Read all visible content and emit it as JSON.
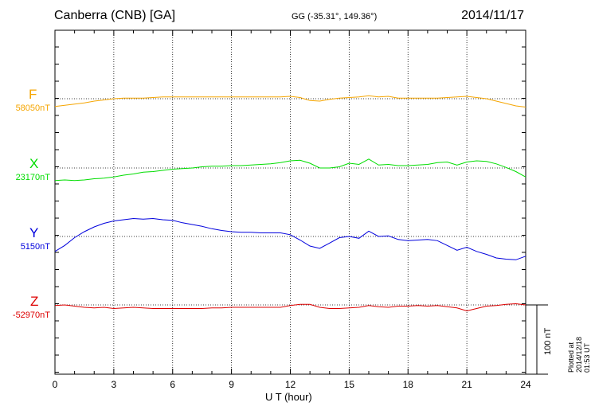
{
  "header": {
    "station": "Canberra (CNB)  [GA]",
    "coords": "GG (-35.31°, 149.36°)",
    "date": "2014/11/17"
  },
  "footer": {
    "plotted": "Plotted at 2014/12/18 01:53 UT",
    "scale_label": "100 nT"
  },
  "chart_data": {
    "type": "line",
    "title": "Canberra (CNB)  [GA]",
    "xlabel": "U T (hour)",
    "ylabel": "",
    "xlim": [
      0,
      24
    ],
    "xticks": [
      "0",
      "3",
      "6",
      "9",
      "12",
      "15",
      "18",
      "21",
      "24"
    ],
    "grid": true,
    "scale_bar_nT": 100,
    "series": [
      {
        "name": "F",
        "baseline": "58050nT",
        "color": "#f5a500",
        "x": [
          0,
          0.5,
          1,
          1.5,
          2,
          2.5,
          3,
          3.5,
          4,
          4.5,
          5,
          5.5,
          6,
          6.5,
          7,
          7.5,
          8,
          8.5,
          9,
          9.5,
          10,
          10.5,
          11,
          11.5,
          12,
          12.5,
          13,
          13.5,
          14,
          14.5,
          15,
          15.5,
          16,
          16.5,
          17,
          17.5,
          18,
          18.5,
          19,
          19.5,
          20,
          20.5,
          21,
          21.5,
          22,
          22.5,
          23,
          23.5,
          24
        ],
        "y": [
          -13,
          -11,
          -9,
          -7,
          -4,
          -2,
          0,
          1,
          1,
          1,
          2,
          3,
          3,
          3,
          3,
          3,
          3,
          3,
          3,
          3,
          3,
          3,
          3,
          3,
          4,
          2,
          -3,
          -4,
          -1,
          1,
          2,
          3,
          5,
          3,
          4,
          1,
          1,
          1,
          1,
          1,
          2,
          3,
          4,
          2,
          0,
          -4,
          -8,
          -12,
          -14
        ]
      },
      {
        "name": "X",
        "baseline": "23170nT",
        "color": "#00dd00",
        "x": [
          0,
          0.5,
          1,
          1.5,
          2,
          2.5,
          3,
          3.5,
          4,
          4.5,
          5,
          5.5,
          6,
          6.5,
          7,
          7.5,
          8,
          8.5,
          9,
          9.5,
          10,
          10.5,
          11,
          11.5,
          12,
          12.5,
          13,
          13.5,
          14,
          14.5,
          15,
          15.5,
          16,
          16.5,
          17,
          17.5,
          18,
          18.5,
          19,
          19.5,
          20,
          20.5,
          21,
          21.5,
          22,
          22.5,
          23,
          23.5,
          24
        ],
        "y": [
          -21,
          -20,
          -21,
          -20,
          -18,
          -17,
          -15,
          -12,
          -10,
          -7,
          -6,
          -4,
          -2,
          -1,
          0,
          2,
          3,
          3,
          4,
          4,
          5,
          6,
          7,
          9,
          12,
          13,
          8,
          0,
          0,
          2,
          8,
          6,
          15,
          5,
          6,
          4,
          4,
          5,
          6,
          9,
          10,
          5,
          10,
          12,
          11,
          7,
          1,
          -6,
          -15
        ]
      },
      {
        "name": "Y",
        "baseline": "5150nT",
        "color": "#0000dd",
        "x": [
          0,
          0.5,
          1,
          1.5,
          2,
          2.5,
          3,
          3.5,
          4,
          4.5,
          5,
          5.5,
          6,
          6.5,
          7,
          7.5,
          8,
          8.5,
          9,
          9.5,
          10,
          10.5,
          11,
          11.5,
          12,
          12.5,
          13,
          13.5,
          14,
          14.5,
          15,
          15.5,
          16,
          16.5,
          17,
          17.5,
          18,
          18.5,
          19,
          19.5,
          20,
          20.5,
          21,
          21.5,
          22,
          22.5,
          23,
          23.5,
          24
        ],
        "y": [
          -25,
          -15,
          -2,
          8,
          16,
          22,
          26,
          28,
          30,
          29,
          30,
          28,
          27,
          23,
          20,
          17,
          13,
          10,
          8,
          7,
          7,
          6,
          6,
          6,
          3,
          -6,
          -16,
          -20,
          -11,
          -2,
          0,
          -3,
          9,
          0,
          1,
          -5,
          -7,
          -6,
          -5,
          -7,
          -15,
          -23,
          -18,
          -25,
          -30,
          -36,
          -38,
          -39,
          -33
        ]
      },
      {
        "name": "Z",
        "baseline": "-52970nT",
        "color": "#dd0000",
        "x": [
          0,
          0.5,
          1,
          1.5,
          2,
          2.5,
          3,
          3.5,
          4,
          4.5,
          5,
          5.5,
          6,
          6.5,
          7,
          7.5,
          8,
          8.5,
          9,
          9.5,
          10,
          10.5,
          11,
          11.5,
          12,
          12.5,
          13,
          13.5,
          14,
          14.5,
          15,
          15.5,
          16,
          16.5,
          17,
          17.5,
          18,
          18.5,
          19,
          19.5,
          20,
          20.5,
          21,
          21.5,
          22,
          22.5,
          23,
          23.5,
          24
        ],
        "y": [
          -1,
          0,
          -2,
          -4,
          -5,
          -4,
          -6,
          -5,
          -4,
          -5,
          -6,
          -6,
          -6,
          -6,
          -6,
          -6,
          -5,
          -5,
          -4,
          -4,
          -4,
          -4,
          -4,
          -4,
          -1,
          1,
          1,
          -4,
          -6,
          -6,
          -5,
          -4,
          -1,
          -3,
          -4,
          -2,
          -2,
          -1,
          -2,
          -1,
          -3,
          -5,
          -10,
          -6,
          -2,
          -1,
          1,
          2,
          0
        ]
      }
    ]
  }
}
